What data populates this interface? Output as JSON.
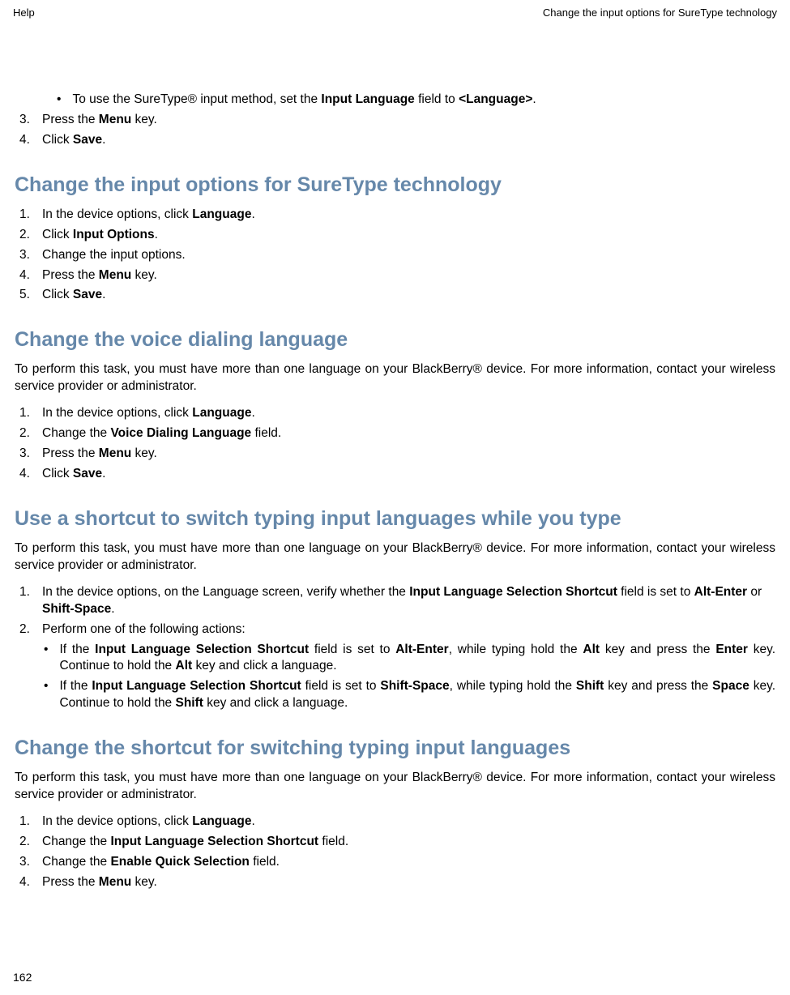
{
  "header": {
    "left": "Help",
    "right": "Change the input options for SureType technology"
  },
  "colors": {
    "heading_color": "#6688aa",
    "text_color": "#000000",
    "background_color": "#ffffff"
  },
  "typography": {
    "body_fontsize": 15.5,
    "heading_fontsize": 25,
    "header_fontsize": 13,
    "pagenum_fontsize": 14
  },
  "top_bullet": {
    "prefix": "To use the SureType® input method, set the ",
    "bold1": "Input Language",
    "mid": " field to ",
    "bold2": "<Language>",
    "suffix": "."
  },
  "top_steps": {
    "s3": {
      "num": "3.",
      "prefix": "Press the ",
      "bold": "Menu",
      "suffix": " key."
    },
    "s4": {
      "num": "4.",
      "prefix": "Click ",
      "bold": "Save",
      "suffix": "."
    }
  },
  "section1": {
    "title": "Change the input options for SureType technology",
    "steps": {
      "s1": {
        "num": "1.",
        "prefix": "In the device options, click ",
        "bold": "Language",
        "suffix": "."
      },
      "s2": {
        "num": "2.",
        "prefix": "Click ",
        "bold": "Input Options",
        "suffix": "."
      },
      "s3": {
        "num": "3.",
        "text": "Change the input options."
      },
      "s4": {
        "num": "4.",
        "prefix": "Press the ",
        "bold": "Menu",
        "suffix": " key."
      },
      "s5": {
        "num": "5.",
        "prefix": "Click ",
        "bold": "Save",
        "suffix": "."
      }
    }
  },
  "section2": {
    "title": "Change the voice dialing language",
    "intro": "To perform this task, you must have more than one language on your BlackBerry® device. For more information, contact your wireless service provider or administrator.",
    "steps": {
      "s1": {
        "num": "1.",
        "prefix": "In the device options, click ",
        "bold": "Language",
        "suffix": "."
      },
      "s2": {
        "num": "2.",
        "prefix": "Change the ",
        "bold": "Voice Dialing Language",
        "suffix": " field."
      },
      "s3": {
        "num": "3.",
        "prefix": "Press the ",
        "bold": "Menu",
        "suffix": " key."
      },
      "s4": {
        "num": "4.",
        "prefix": "Click ",
        "bold": "Save",
        "suffix": "."
      }
    }
  },
  "section3": {
    "title": "Use a shortcut to switch typing input languages while you type",
    "intro": "To perform this task, you must have more than one language on your BlackBerry® device. For more information, contact your wireless service provider or administrator.",
    "step1": {
      "num": "1.",
      "p1": "In the device options, on the Language screen, verify whether the ",
      "b1": "Input Language Selection Shortcut",
      "p2": " field is set to ",
      "b2": "Alt-Enter",
      "p3": " or ",
      "b3": "Shift-Space",
      "p4": "."
    },
    "step2": {
      "num": "2.",
      "text": "Perform one of the following actions:"
    },
    "sub1": {
      "p1": "If the ",
      "b1": "Input Language Selection Shortcut",
      "p2": " field is set to ",
      "b2": "Alt-Enter",
      "p3": ", while typing hold the ",
      "b3": "Alt",
      "p4": " key and press the ",
      "b4": "Enter",
      "p5": " key. Continue to hold the ",
      "b5": "Alt",
      "p6": " key and click a language."
    },
    "sub2": {
      "p1": "If the ",
      "b1": "Input Language Selection Shortcut",
      "p2": " field is set to ",
      "b2": "Shift-Space",
      "p3": ", while typing hold the ",
      "b3": "Shift",
      "p4": " key and press the ",
      "b4": "Space",
      "p5": " key. Continue to hold the ",
      "b5": "Shift",
      "p6": " key and click a language."
    }
  },
  "section4": {
    "title": "Change the shortcut for switching typing input languages",
    "intro": "To perform this task, you must have more than one language on your BlackBerry® device. For more information, contact your wireless service provider or administrator.",
    "steps": {
      "s1": {
        "num": "1.",
        "prefix": "In the device options, click ",
        "bold": "Language",
        "suffix": "."
      },
      "s2": {
        "num": "2.",
        "prefix": "Change the ",
        "bold": "Input Language Selection Shortcut",
        "suffix": " field."
      },
      "s3": {
        "num": "3.",
        "prefix": "Change the ",
        "bold": "Enable Quick Selection",
        "suffix": " field."
      },
      "s4": {
        "num": "4.",
        "prefix": "Press the ",
        "bold": "Menu",
        "suffix": " key."
      }
    }
  },
  "page_number": "162"
}
